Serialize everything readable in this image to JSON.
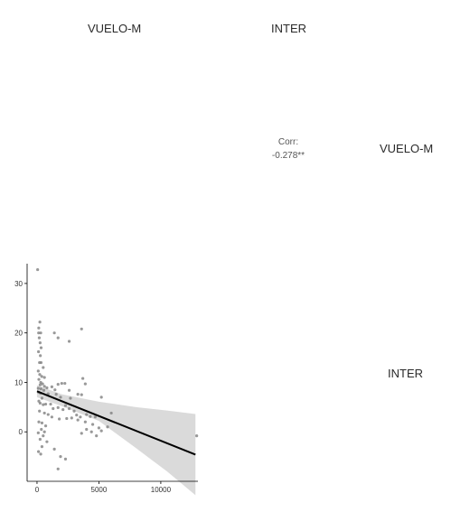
{
  "matrix": {
    "col_headers": [
      "VUELO-M",
      "INTER"
    ],
    "row_headers": [
      "VUELO-M",
      "INTER"
    ],
    "correlation": {
      "label": "Corr:",
      "value": "-0.278**"
    }
  },
  "chart_data": {
    "type": "scatter",
    "title": "",
    "xlabel": "",
    "ylabel": "",
    "xlim": [
      -800,
      13000
    ],
    "ylim": [
      -10,
      34
    ],
    "x_ticks": [
      0,
      5000,
      10000
    ],
    "y_ticks": [
      0,
      10,
      20,
      30
    ],
    "x_tick_labels": [
      "0",
      "5000",
      "10000"
    ],
    "y_tick_labels": [
      "0",
      "10",
      "20",
      "30"
    ],
    "grid": false,
    "point_color": "#808080",
    "line_color": "#000000",
    "band_color": "#d3d3d3",
    "points": [
      [
        50,
        32.8
      ],
      [
        230,
        22.2
      ],
      [
        140,
        21.0
      ],
      [
        130,
        20.0
      ],
      [
        300,
        20.0
      ],
      [
        180,
        19.0
      ],
      [
        250,
        18.0
      ],
      [
        330,
        17.0
      ],
      [
        120,
        16.2
      ],
      [
        270,
        15.4
      ],
      [
        200,
        14.0
      ],
      [
        330,
        14.0
      ],
      [
        100,
        12.3
      ],
      [
        220,
        11.6
      ],
      [
        380,
        11.2
      ],
      [
        500,
        13.0
      ],
      [
        600,
        11.0
      ],
      [
        150,
        10.6
      ],
      [
        300,
        10.0
      ],
      [
        450,
        9.7
      ],
      [
        250,
        9.5
      ],
      [
        600,
        9.2
      ],
      [
        100,
        8.8
      ],
      [
        320,
        8.7
      ],
      [
        550,
        8.4
      ],
      [
        130,
        8.0
      ],
      [
        280,
        7.8
      ],
      [
        900,
        7.7
      ],
      [
        800,
        8.9
      ],
      [
        1200,
        9.1
      ],
      [
        1450,
        8.5
      ],
      [
        1700,
        9.6
      ],
      [
        2000,
        9.8
      ],
      [
        2250,
        9.8
      ],
      [
        2600,
        8.4
      ],
      [
        1550,
        7.6
      ],
      [
        1900,
        7.0
      ],
      [
        2700,
        6.8
      ],
      [
        3300,
        7.6
      ],
      [
        3600,
        7.5
      ],
      [
        3900,
        9.7
      ],
      [
        3700,
        10.8
      ],
      [
        3600,
        20.8
      ],
      [
        1400,
        20.0
      ],
      [
        1700,
        19.0
      ],
      [
        2600,
        18.3
      ],
      [
        5200,
        7.0
      ],
      [
        400,
        6.8
      ],
      [
        150,
        6.2
      ],
      [
        250,
        5.8
      ],
      [
        500,
        5.5
      ],
      [
        700,
        5.6
      ],
      [
        1100,
        5.6
      ],
      [
        1300,
        4.7
      ],
      [
        1700,
        4.9
      ],
      [
        2100,
        4.5
      ],
      [
        2300,
        5.3
      ],
      [
        2600,
        4.7
      ],
      [
        3000,
        4.2
      ],
      [
        3200,
        3.4
      ],
      [
        3500,
        3.0
      ],
      [
        4000,
        3.5
      ],
      [
        4300,
        3.1
      ],
      [
        4700,
        3.0
      ],
      [
        6000,
        3.8
      ],
      [
        200,
        4.2
      ],
      [
        600,
        3.8
      ],
      [
        900,
        3.5
      ],
      [
        1200,
        3.0
      ],
      [
        1800,
        2.6
      ],
      [
        2400,
        2.7
      ],
      [
        2800,
        2.8
      ],
      [
        3300,
        2.4
      ],
      [
        3900,
        2.0
      ],
      [
        4500,
        1.5
      ],
      [
        5000,
        0.8
      ],
      [
        5700,
        1.0
      ],
      [
        4000,
        0.5
      ],
      [
        4400,
        0.0
      ],
      [
        3600,
        -0.3
      ],
      [
        4800,
        -0.8
      ],
      [
        5200,
        0.2
      ],
      [
        150,
        2.0
      ],
      [
        400,
        1.8
      ],
      [
        700,
        1.2
      ],
      [
        350,
        0.5
      ],
      [
        600,
        0.0
      ],
      [
        100,
        -0.2
      ],
      [
        500,
        -0.8
      ],
      [
        250,
        -1.5
      ],
      [
        800,
        -2.0
      ],
      [
        400,
        -3.0
      ],
      [
        120,
        -4.0
      ],
      [
        300,
        -4.5
      ],
      [
        1400,
        -3.5
      ],
      [
        1900,
        -5.0
      ],
      [
        2300,
        -5.5
      ],
      [
        1700,
        -7.5
      ],
      [
        12900,
        -0.8
      ]
    ],
    "fit_line": {
      "x": [
        0,
        12800
      ],
      "y": [
        8.2,
        -4.6
      ]
    },
    "confidence_band": {
      "upper": [
        [
          0,
          9.4
        ],
        [
          2000,
          7.6
        ],
        [
          5000,
          6.1
        ],
        [
          8000,
          5.0
        ],
        [
          10500,
          4.3
        ],
        [
          12800,
          3.6
        ]
      ],
      "lower": [
        [
          0,
          7.0
        ],
        [
          2000,
          5.2
        ],
        [
          5000,
          2.2
        ],
        [
          8000,
          -3.3
        ],
        [
          10500,
          -8.0
        ],
        [
          12800,
          -12.8
        ]
      ]
    }
  }
}
